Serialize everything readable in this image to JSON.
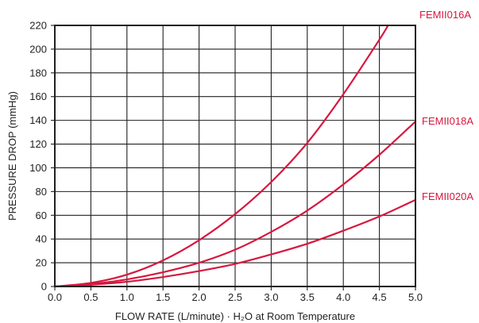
{
  "chart_data": {
    "type": "line",
    "title": "",
    "xlabel": "FLOW RATE (L/minute) · H₂O at Room Temperature",
    "ylabel": "PRESSURE DROP (mmHg)",
    "xlim": [
      0,
      5
    ],
    "ylim": [
      0,
      220
    ],
    "x_ticks": [
      "0.0",
      "0.5",
      "1.0",
      "1.5",
      "2.0",
      "2.5",
      "3.0",
      "3.5",
      "4.0",
      "4.5",
      "5.0"
    ],
    "y_ticks": [
      "0",
      "20",
      "40",
      "60",
      "80",
      "100",
      "120",
      "140",
      "160",
      "180",
      "200",
      "220"
    ],
    "grid": true,
    "line_color": "#d7173f",
    "series": [
      {
        "name": "FEMII016A",
        "x": [
          0,
          0.5,
          1.0,
          1.5,
          2.0,
          2.5,
          3.0,
          3.5,
          4.0,
          4.5,
          4.62
        ],
        "values": [
          0,
          3,
          10,
          22,
          39,
          61,
          88,
          121,
          162,
          208,
          220
        ]
      },
      {
        "name": "FEMII018A",
        "x": [
          0,
          0.5,
          1.0,
          1.5,
          2.0,
          2.5,
          3.0,
          3.5,
          4.0,
          4.5,
          5.0
        ],
        "values": [
          0,
          2,
          6,
          12,
          20,
          31,
          46,
          64,
          86,
          111,
          139
        ]
      },
      {
        "name": "FEMII020A",
        "x": [
          0,
          0.5,
          1.0,
          1.5,
          2.0,
          2.5,
          3.0,
          3.5,
          4.0,
          4.5,
          5.0
        ],
        "values": [
          0,
          1.5,
          4,
          8,
          13,
          19,
          27,
          36,
          47,
          59,
          73
        ]
      }
    ]
  }
}
